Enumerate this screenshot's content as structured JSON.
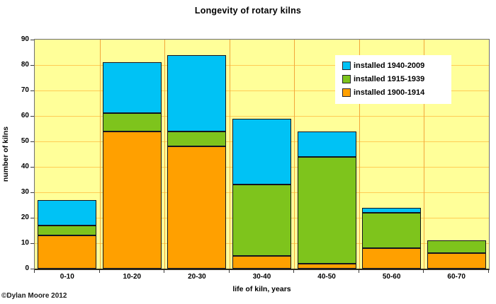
{
  "title": "Longevity of rotary kilns",
  "copyright": "©Dylan Moore 2012",
  "colors": {
    "page_bg": "#FFFFFF",
    "plot_bg": "#FFFF99",
    "grid_h": "#FFCC55",
    "grid_v": "#F2A73B",
    "plot_border": "#6E6E6E",
    "bar_border": "#14141E",
    "series_1940_2009": "#00C2F5",
    "series_1915_1939": "#7EC41C",
    "series_1900_1914": "#FFA000",
    "legend_bg": "#FFFFFF",
    "text": "#000000"
  },
  "legend": {
    "items": [
      {
        "label": "installed 1940-2009",
        "color": "#00C2F5"
      },
      {
        "label": "installed 1915-1939",
        "color": "#7EC41C"
      },
      {
        "label": "installed 1900-1914",
        "color": "#FFA000"
      }
    ]
  },
  "chart_data": {
    "type": "bar",
    "stacked": true,
    "title": "Longevity of rotary kilns",
    "xlabel": "life of kiln, years",
    "ylabel": "number of kilns",
    "categories": [
      "0-10",
      "10-20",
      "20-30",
      "30-40",
      "40-50",
      "50-60",
      "60-70"
    ],
    "series": [
      {
        "name": "installed 1900-1914",
        "color": "#FFA000",
        "values": [
          13,
          54,
          48,
          5,
          2,
          8,
          6
        ]
      },
      {
        "name": "installed 1915-1939",
        "color": "#7EC41C",
        "values": [
          4,
          7,
          6,
          28,
          42,
          14,
          5
        ]
      },
      {
        "name": "installed 1940-2009",
        "color": "#00C2F5",
        "values": [
          10,
          20,
          30,
          26,
          10,
          2,
          0
        ]
      }
    ],
    "totals": [
      27,
      81,
      84,
      59,
      54,
      24,
      11
    ],
    "ylim": [
      0,
      90
    ],
    "ytick_step": 10,
    "ytick_labels": [
      "0",
      "10",
      "20",
      "30",
      "40",
      "50",
      "60",
      "70",
      "80",
      "90"
    ],
    "grid": true,
    "legend_position": "inside-top-right",
    "legend_order_top_to_bottom": [
      "installed 1940-2009",
      "installed 1915-1939",
      "installed 1900-1914"
    ]
  }
}
